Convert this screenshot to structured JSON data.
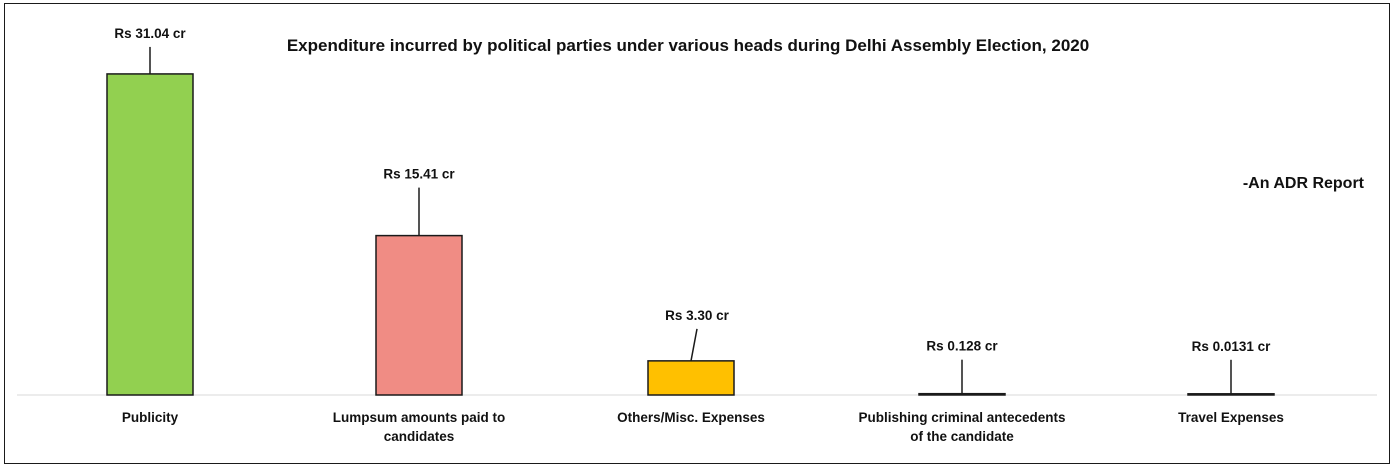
{
  "chart_data": {
    "type": "bar",
    "title": "Expenditure incurred by political parties under various heads during Delhi Assembly Election, 2020",
    "annotation": "-An ADR Report",
    "categories": [
      [
        "Publicity"
      ],
      [
        "Lumpsum amounts paid to",
        "candidates"
      ],
      [
        "Others/Misc. Expenses"
      ],
      [
        "Publishing criminal antecedents",
        "of the candidate"
      ],
      [
        "Travel Expenses"
      ]
    ],
    "values": [
      31.04,
      15.41,
      3.3,
      0.128,
      0.0131
    ],
    "data_labels": [
      "Rs 31.04 cr",
      "Rs 15.41 cr",
      "Rs 3.30 cr",
      "Rs 0.128 cr",
      "Rs 0.0131 cr"
    ],
    "colors": [
      "#92d050",
      "#f08c84",
      "#ffc000",
      "#bfbfbf",
      "#bfbfbf"
    ],
    "ylim": [
      0,
      32
    ],
    "grid": false,
    "legend": "none",
    "xlabel": "",
    "ylabel": ""
  }
}
